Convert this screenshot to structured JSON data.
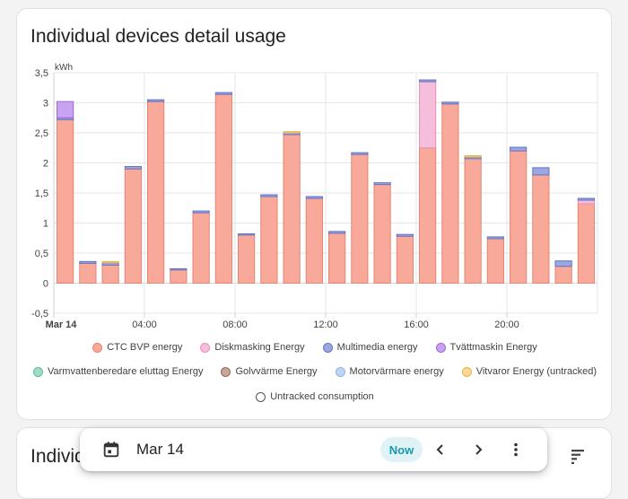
{
  "card1": {
    "title": "Individual devices detail usage"
  },
  "card2": {
    "title": "Individual devices total usage"
  },
  "chart_data": {
    "type": "bar",
    "stacked": true,
    "ylabel": "kWh",
    "ylim": [
      -0.5,
      3.5
    ],
    "yticks": [
      "-0,5",
      "0",
      "0,5",
      "1",
      "1,5",
      "2",
      "2,5",
      "3",
      "3,5"
    ],
    "xticks": [
      "Mar 14",
      "04:00",
      "08:00",
      "12:00",
      "16:00",
      "20:00"
    ],
    "grid": true,
    "hours": [
      0,
      1,
      2,
      3,
      4,
      5,
      6,
      7,
      8,
      9,
      10,
      11,
      12,
      13,
      14,
      15,
      16,
      17,
      18,
      19,
      20,
      21,
      22,
      23
    ],
    "series": [
      {
        "name": "CTC BVP energy",
        "color": "#f9a99a",
        "values": [
          2.72,
          0.33,
          0.3,
          1.9,
          3.02,
          0.22,
          1.17,
          3.14,
          0.8,
          1.44,
          2.47,
          1.41,
          0.83,
          2.14,
          1.64,
          0.78,
          2.25,
          2.98,
          2.07,
          0.74,
          2.2,
          1.8,
          0.28,
          1.32
        ]
      },
      {
        "name": "Diskmasking Energy",
        "color": "#f7bedc",
        "values": [
          0,
          0,
          0,
          0,
          0,
          0,
          0,
          0,
          0,
          0,
          0,
          0,
          0,
          0,
          0,
          0,
          1.1,
          0,
          0,
          0,
          0,
          0,
          0,
          0.06
        ]
      },
      {
        "name": "Multimedia energy",
        "color": "#9aa7e0",
        "values": [
          0.03,
          0.03,
          0.04,
          0.04,
          0.03,
          0.02,
          0.03,
          0.03,
          0.02,
          0.03,
          0.03,
          0.03,
          0.03,
          0.03,
          0.03,
          0.03,
          0.03,
          0.03,
          0.03,
          0.03,
          0.06,
          0.12,
          0.09,
          0.03
        ]
      },
      {
        "name": "Tvättmaskin Energy",
        "color": "#c9a2f2",
        "values": [
          0.27,
          0,
          0,
          0,
          0,
          0,
          0,
          0,
          0,
          0,
          0,
          0,
          0,
          0,
          0,
          0,
          0,
          0,
          0,
          0,
          0,
          0,
          0,
          0
        ]
      },
      {
        "name": "Varmvattenberedare eluttag Energy",
        "color": "#9fdcc6",
        "values": []
      },
      {
        "name": "Golvvärme Energy",
        "color": "#c9a596",
        "values": []
      },
      {
        "name": "Motorvärmare energy",
        "color": "#bdd6f3",
        "values": []
      },
      {
        "name": "Vitvaror Energy (untracked)",
        "color": "#f9d995",
        "values": [
          0,
          0,
          0.02,
          0,
          0,
          0,
          0,
          0,
          0,
          0,
          0.02,
          0,
          0,
          0,
          0,
          0,
          0,
          0,
          0.02,
          0,
          0,
          0,
          0,
          0
        ]
      }
    ],
    "untracked_label": "Untracked consumption"
  },
  "legend": [
    {
      "label": "CTC BVP energy",
      "fill": "#f9a99a",
      "stroke": "#e8836f"
    },
    {
      "label": "Diskmasking Energy",
      "fill": "#f7bedc",
      "stroke": "#e690bb"
    },
    {
      "label": "Multimedia energy",
      "fill": "#9aa7e0",
      "stroke": "#6373c4"
    },
    {
      "label": "Tvättmaskin Energy",
      "fill": "#c9a2f2",
      "stroke": "#9d68d8"
    },
    {
      "label": "Varmvattenberedare eluttag Energy",
      "fill": "#9fdcc6",
      "stroke": "#5fbc9d"
    },
    {
      "label": "Golvvärme Energy",
      "fill": "#c9a596",
      "stroke": "#8d6b5d"
    },
    {
      "label": "Motorvärmare energy",
      "fill": "#bdd6f3",
      "stroke": "#8db3e0"
    },
    {
      "label": "Vitvaror Energy (untracked)",
      "fill": "#f9d995",
      "stroke": "#e4b44d"
    },
    {
      "label": "Untracked consumption",
      "fill": "#ffffff",
      "stroke": "#555555"
    }
  ],
  "datebar": {
    "date": "Mar 14",
    "now_label": "Now",
    "calendar_icon": "calendar-icon",
    "prev_icon": "chevron-left-icon",
    "next_icon": "chevron-right-icon",
    "more_icon": "more-vertical-icon"
  },
  "colors": {
    "accent": "#1d97b1",
    "now_bg": "#dff2f6"
  }
}
